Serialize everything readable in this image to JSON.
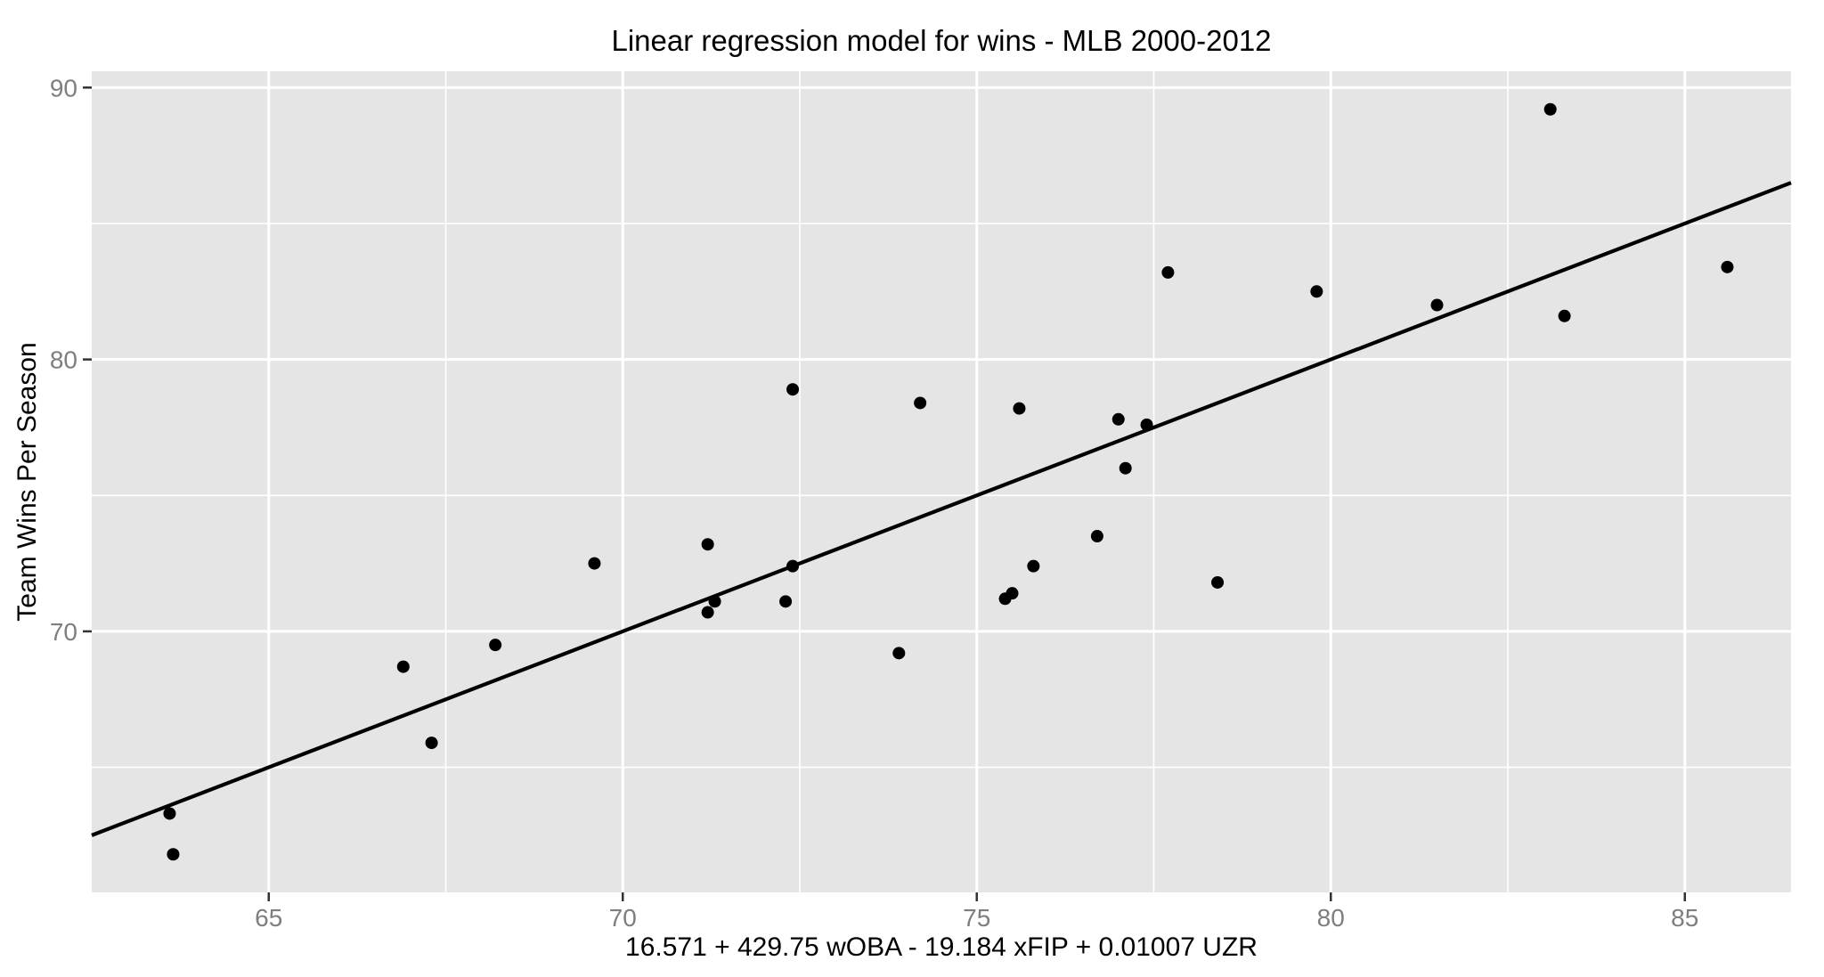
{
  "chart_data": {
    "type": "scatter",
    "title": "Linear regression model for wins - MLB 2000-2012",
    "xlabel": "16.571 + 429.75 wOBA - 19.184 xFIP + 0.01007 UZR",
    "ylabel": "Team Wins Per Season",
    "xlim": [
      62.5,
      86.5
    ],
    "ylim": [
      60.4,
      90.6
    ],
    "x_major_ticks": [
      65,
      70,
      75,
      80,
      85
    ],
    "x_minor_ticks": [
      67.5,
      72.5,
      77.5,
      82.5
    ],
    "y_major_ticks": [
      70,
      80,
      90
    ],
    "y_minor_ticks": [
      65,
      75,
      85
    ],
    "grid": "on",
    "legend_position": "none",
    "regression_line": {
      "x1": 62.5,
      "y1": 62.5,
      "x2": 86.5,
      "y2": 86.5
    },
    "points": [
      [
        63.6,
        63.3
      ],
      [
        63.65,
        61.8
      ],
      [
        66.9,
        68.7
      ],
      [
        67.3,
        65.9
      ],
      [
        68.2,
        69.5
      ],
      [
        69.6,
        72.5
      ],
      [
        71.2,
        73.2
      ],
      [
        71.3,
        71.1
      ],
      [
        71.2,
        70.7
      ],
      [
        72.3,
        71.1
      ],
      [
        72.4,
        72.4
      ],
      [
        72.4,
        78.9
      ],
      [
        73.9,
        69.2
      ],
      [
        74.2,
        78.4
      ],
      [
        75.4,
        71.2
      ],
      [
        75.5,
        71.4
      ],
      [
        75.6,
        78.2
      ],
      [
        75.8,
        72.4
      ],
      [
        76.7,
        73.5
      ],
      [
        77.0,
        77.8
      ],
      [
        77.1,
        76.0
      ],
      [
        77.4,
        77.6
      ],
      [
        77.7,
        83.2
      ],
      [
        78.4,
        71.8
      ],
      [
        79.8,
        82.5
      ],
      [
        81.5,
        82.0
      ],
      [
        83.1,
        89.2
      ],
      [
        83.3,
        81.6
      ],
      [
        85.6,
        83.4
      ]
    ],
    "colors": {
      "panel_bg": "#E5E5E5",
      "grid_major": "#FFFFFF",
      "grid_minor": "#FFFFFF",
      "point": "#000000",
      "line": "#000000",
      "tick_mark": "#333333",
      "tick_label": "#7E7E7E",
      "text": "#000000",
      "page_bg": "#FFFFFF"
    }
  }
}
